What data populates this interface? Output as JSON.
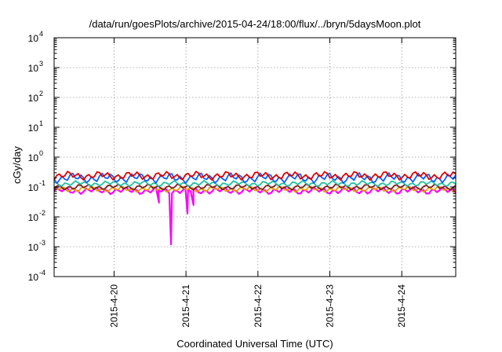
{
  "chart_data": {
    "type": "line",
    "title": "/data/run/goesPlots/archive/2015-04-24/18:00/flux/../bryn/5daysMoon.plot",
    "xlabel": "Coordinated Universal Time (UTC)",
    "ylabel": "cGy/day",
    "yscale": "log",
    "grid": true,
    "legend": "none",
    "xlim": [
      "2015-04-19T04:00",
      "2015-04-24T18:00"
    ],
    "x_ticks": [
      "2015-4-20",
      "2015-4-21",
      "2015-4-22",
      "2015-4-23",
      "2015-4-24"
    ],
    "ylim": [
      0.0001,
      10000
    ],
    "y_ticks": [
      {
        "base": "10",
        "exp": "-4",
        "value": 0.0001
      },
      {
        "base": "10",
        "exp": "-3",
        "value": 0.001
      },
      {
        "base": "10",
        "exp": "-2",
        "value": 0.01
      },
      {
        "base": "10",
        "exp": "-1",
        "value": 0.1
      },
      {
        "base": "10",
        "exp": "0",
        "value": 1
      },
      {
        "base": "10",
        "exp": "1",
        "value": 10
      },
      {
        "base": "10",
        "exp": "2",
        "value": 100
      },
      {
        "base": "10",
        "exp": "3",
        "value": 1000
      },
      {
        "base": "10",
        "exp": "4",
        "value": 10000
      }
    ],
    "series": [
      {
        "color": "#ff00ff",
        "level": 0.075,
        "jitter": 0.12,
        "dips": [
          {
            "x": "2015-04-20T15:00",
            "value": 0.03
          },
          {
            "x": "2015-04-20T19:00",
            "value": 0.0012
          },
          {
            "x": "2015-04-21T00:30",
            "value": 0.013
          },
          {
            "x": "2015-04-21T02:30",
            "value": 0.025
          }
        ]
      },
      {
        "color": "#e8a000",
        "level": 0.085,
        "jitter": 0.1,
        "dips": []
      },
      {
        "color": "#7a1f1f",
        "level": 0.1,
        "jitter": 0.1,
        "dips": []
      },
      {
        "color": "#20c0a0",
        "level": 0.13,
        "jitter": 0.1,
        "dips": []
      },
      {
        "color": "#1060ff",
        "level": 0.2,
        "jitter": 0.18,
        "dips": []
      },
      {
        "color": "#e00000",
        "level": 0.24,
        "jitter": 0.15,
        "dips": []
      }
    ]
  }
}
